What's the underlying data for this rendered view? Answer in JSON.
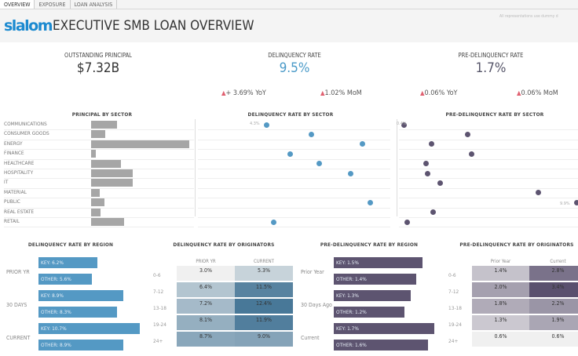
{
  "tabs": [
    "OVERVIEW",
    "EXPOSURE",
    "LOAN ANALYSIS"
  ],
  "header": {
    "logo": "slalom",
    "title": "EXECUTIVE SMB LOAN OVERVIEW",
    "disclaimer": "All representations use dummy d"
  },
  "kpis": [
    {
      "label": "OUTSTANDING PRINCIPAL",
      "value": "$7.32B",
      "color": "#333333"
    },
    {
      "label": "DELINQUENCY RATE",
      "value": "9.5%",
      "color": "#4a9ac8",
      "yoy": "+ 3.69% YoY",
      "mom": "1.02% MoM"
    },
    {
      "label": "PRE-DELINQUENCY RATE",
      "value": "1.7%",
      "color": "#555468",
      "yoy": "0.06% YoY",
      "mom": "0.06% MoM"
    }
  ],
  "colors": {
    "blue": "#5499c4",
    "purple": "#5d5470",
    "grey_bar": "#a6a6a6",
    "up_arrow": "#e06070"
  },
  "chart_data": [
    {
      "type": "bar",
      "title": "PRINCIPAL BY SECTOR",
      "categories": [
        "COMMUNICATIONS",
        "CONSUMER GOODS",
        "ENERGY",
        "FINANCE",
        "HEALTHCARE",
        "HOSPITALITY",
        "IT",
        "MATERIAL",
        "PUBLIC",
        "REAL ESTATE",
        "RETAIL"
      ],
      "values": [
        0.59,
        0.32,
        2.24,
        0.11,
        0.68,
        0.95,
        0.95,
        0.2,
        0.3,
        0.22,
        0.75
      ]
    },
    {
      "type": "scatter",
      "title": "DELINQUENCY RATE BY SECTOR",
      "values": [
        4.3,
        7.0,
        10.1,
        5.7,
        7.5,
        9.4,
        null,
        null,
        10.6,
        null,
        4.7
      ],
      "labels": {
        "min": "4.3%"
      }
    },
    {
      "type": "scatter",
      "title": "PRE-DELINQUENCY RATE BY SECTOR",
      "values": [
        0.4,
        3.9,
        1.9,
        4.1,
        1.6,
        1.7,
        2.4,
        7.8,
        9.9,
        2.0,
        0.6
      ],
      "labels": {
        "min": "0.4%",
        "max": "9.9%"
      }
    },
    {
      "type": "bar",
      "title": "DELINQUENCY RATE BY REGION",
      "groups": [
        "PRIOR YR",
        "30 DAYS",
        "CURRENT"
      ],
      "series": [
        {
          "name": "KEY",
          "values": [
            6.2,
            8.9,
            10.7
          ]
        },
        {
          "name": "OTHER",
          "values": [
            5.6,
            8.3,
            8.9
          ]
        }
      ]
    },
    {
      "type": "heatmap",
      "title": "DELINQUENCY RATE BY ORIGINATORS",
      "columns": [
        "PRIOR YR",
        "CURRENT"
      ],
      "rows": [
        "0-6",
        "7-12",
        "13-18",
        "19-24",
        "24+"
      ],
      "values": [
        [
          3.0,
          5.3
        ],
        [
          6.4,
          11.5
        ],
        [
          7.2,
          12.4
        ],
        [
          8.1,
          11.9
        ],
        [
          8.7,
          9.0
        ]
      ]
    },
    {
      "type": "bar",
      "title": "PRE-DELINQUENCY RATE BY REGION",
      "groups": [
        "Prior Year",
        "30 Days Ago",
        "Current"
      ],
      "series": [
        {
          "name": "KEY",
          "values": [
            1.5,
            1.3,
            1.7
          ]
        },
        {
          "name": "OTHER",
          "values": [
            1.4,
            1.2,
            1.6
          ]
        }
      ]
    },
    {
      "type": "heatmap",
      "title": "PRE-DELINQUENCY RATE BY ORIGINATORS",
      "columns": [
        "Prior Year",
        "Current"
      ],
      "rows": [
        "0-6",
        "7-12",
        "13-18",
        "19-24",
        "24+"
      ],
      "values": [
        [
          1.4,
          2.8
        ],
        [
          2.0,
          3.4
        ],
        [
          1.8,
          2.2
        ],
        [
          1.3,
          1.9
        ],
        [
          0.6,
          0.6
        ]
      ]
    }
  ]
}
